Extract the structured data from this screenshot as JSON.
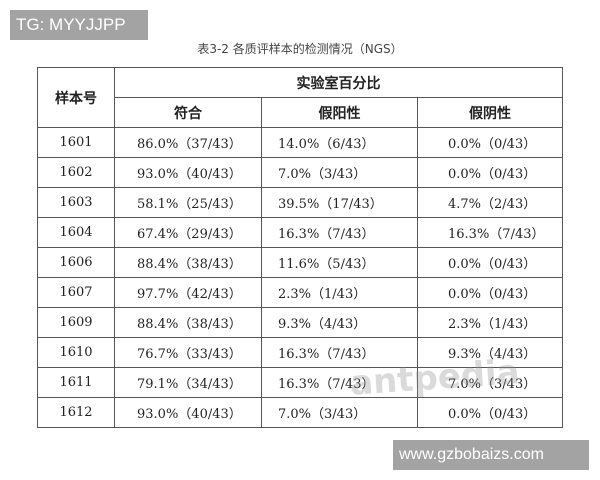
{
  "badge_top": "TG: MYYJJPP",
  "badge_bottom": "www.gzbobaizs.com",
  "title": "表3-2 各质评样本的检测情况（NGS）",
  "watermark": "antpedia",
  "headers": {
    "sample": "样本号",
    "group": "实验室百分比",
    "cols": [
      "符合",
      "假阳性",
      "假阴性"
    ]
  },
  "rows": [
    [
      "1601",
      "86.0%（37/43）",
      "14.0%（6/43）",
      "0.0%（0/43）"
    ],
    [
      "1602",
      "93.0%（40/43）",
      "7.0%（3/43）",
      "0.0%（0/43）"
    ],
    [
      "1603",
      "58.1%（25/43）",
      "39.5%（17/43）",
      "4.7%（2/43）"
    ],
    [
      "1604",
      "67.4%（29/43）",
      "16.3%（7/43）",
      "16.3%（7/43）"
    ],
    [
      "1606",
      "88.4%（38/43）",
      "11.6%（5/43）",
      "0.0%（0/43）"
    ],
    [
      "1607",
      "97.7%（42/43）",
      "2.3%（1/43）",
      "0.0%（0/43）"
    ],
    [
      "1609",
      "88.4%（38/43）",
      "9.3%（4/43）",
      "2.3%（1/43）"
    ],
    [
      "1610",
      "76.7%（33/43）",
      "16.3%（7/43）",
      "9.3%（4/43）"
    ],
    [
      "1611",
      "79.1%（34/43）",
      "16.3%（7/43）",
      "7.0%（3/43）"
    ],
    [
      "1612",
      "93.0%（40/43）",
      "7.0%（3/43）",
      "0.0%（0/43）"
    ]
  ]
}
